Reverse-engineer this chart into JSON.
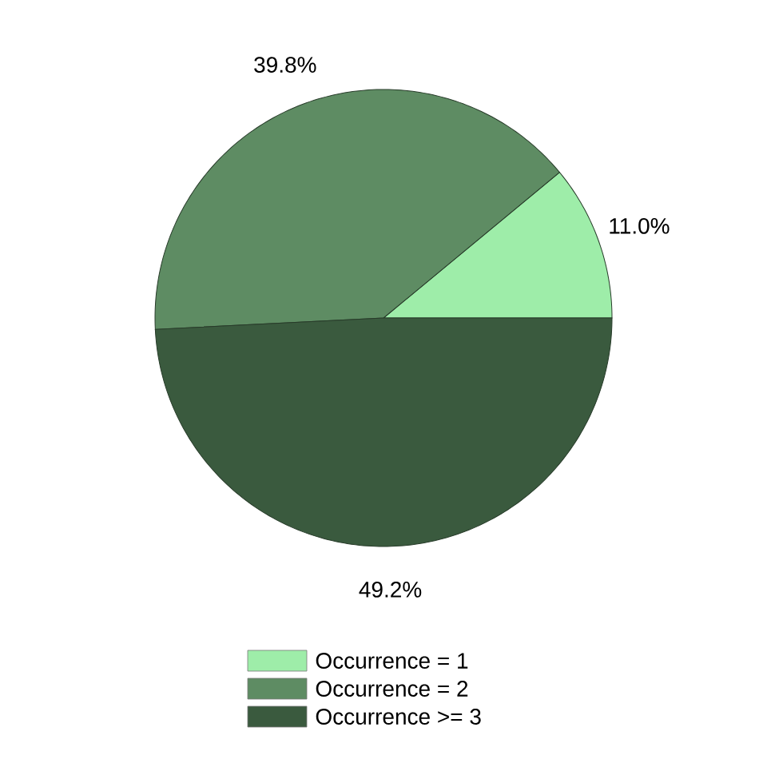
{
  "chart_data": {
    "type": "pie",
    "categories": [
      "Occurrence = 1",
      "Occurrence = 2",
      "Occurrence >= 3"
    ],
    "values": [
      11.0,
      39.8,
      49.2
    ],
    "colors": [
      "#9eeda9",
      "#5e8c63",
      "#3a5a3e"
    ],
    "value_labels": [
      "11.0%",
      "39.8%",
      "49.2%"
    ],
    "legend": "bottom"
  }
}
